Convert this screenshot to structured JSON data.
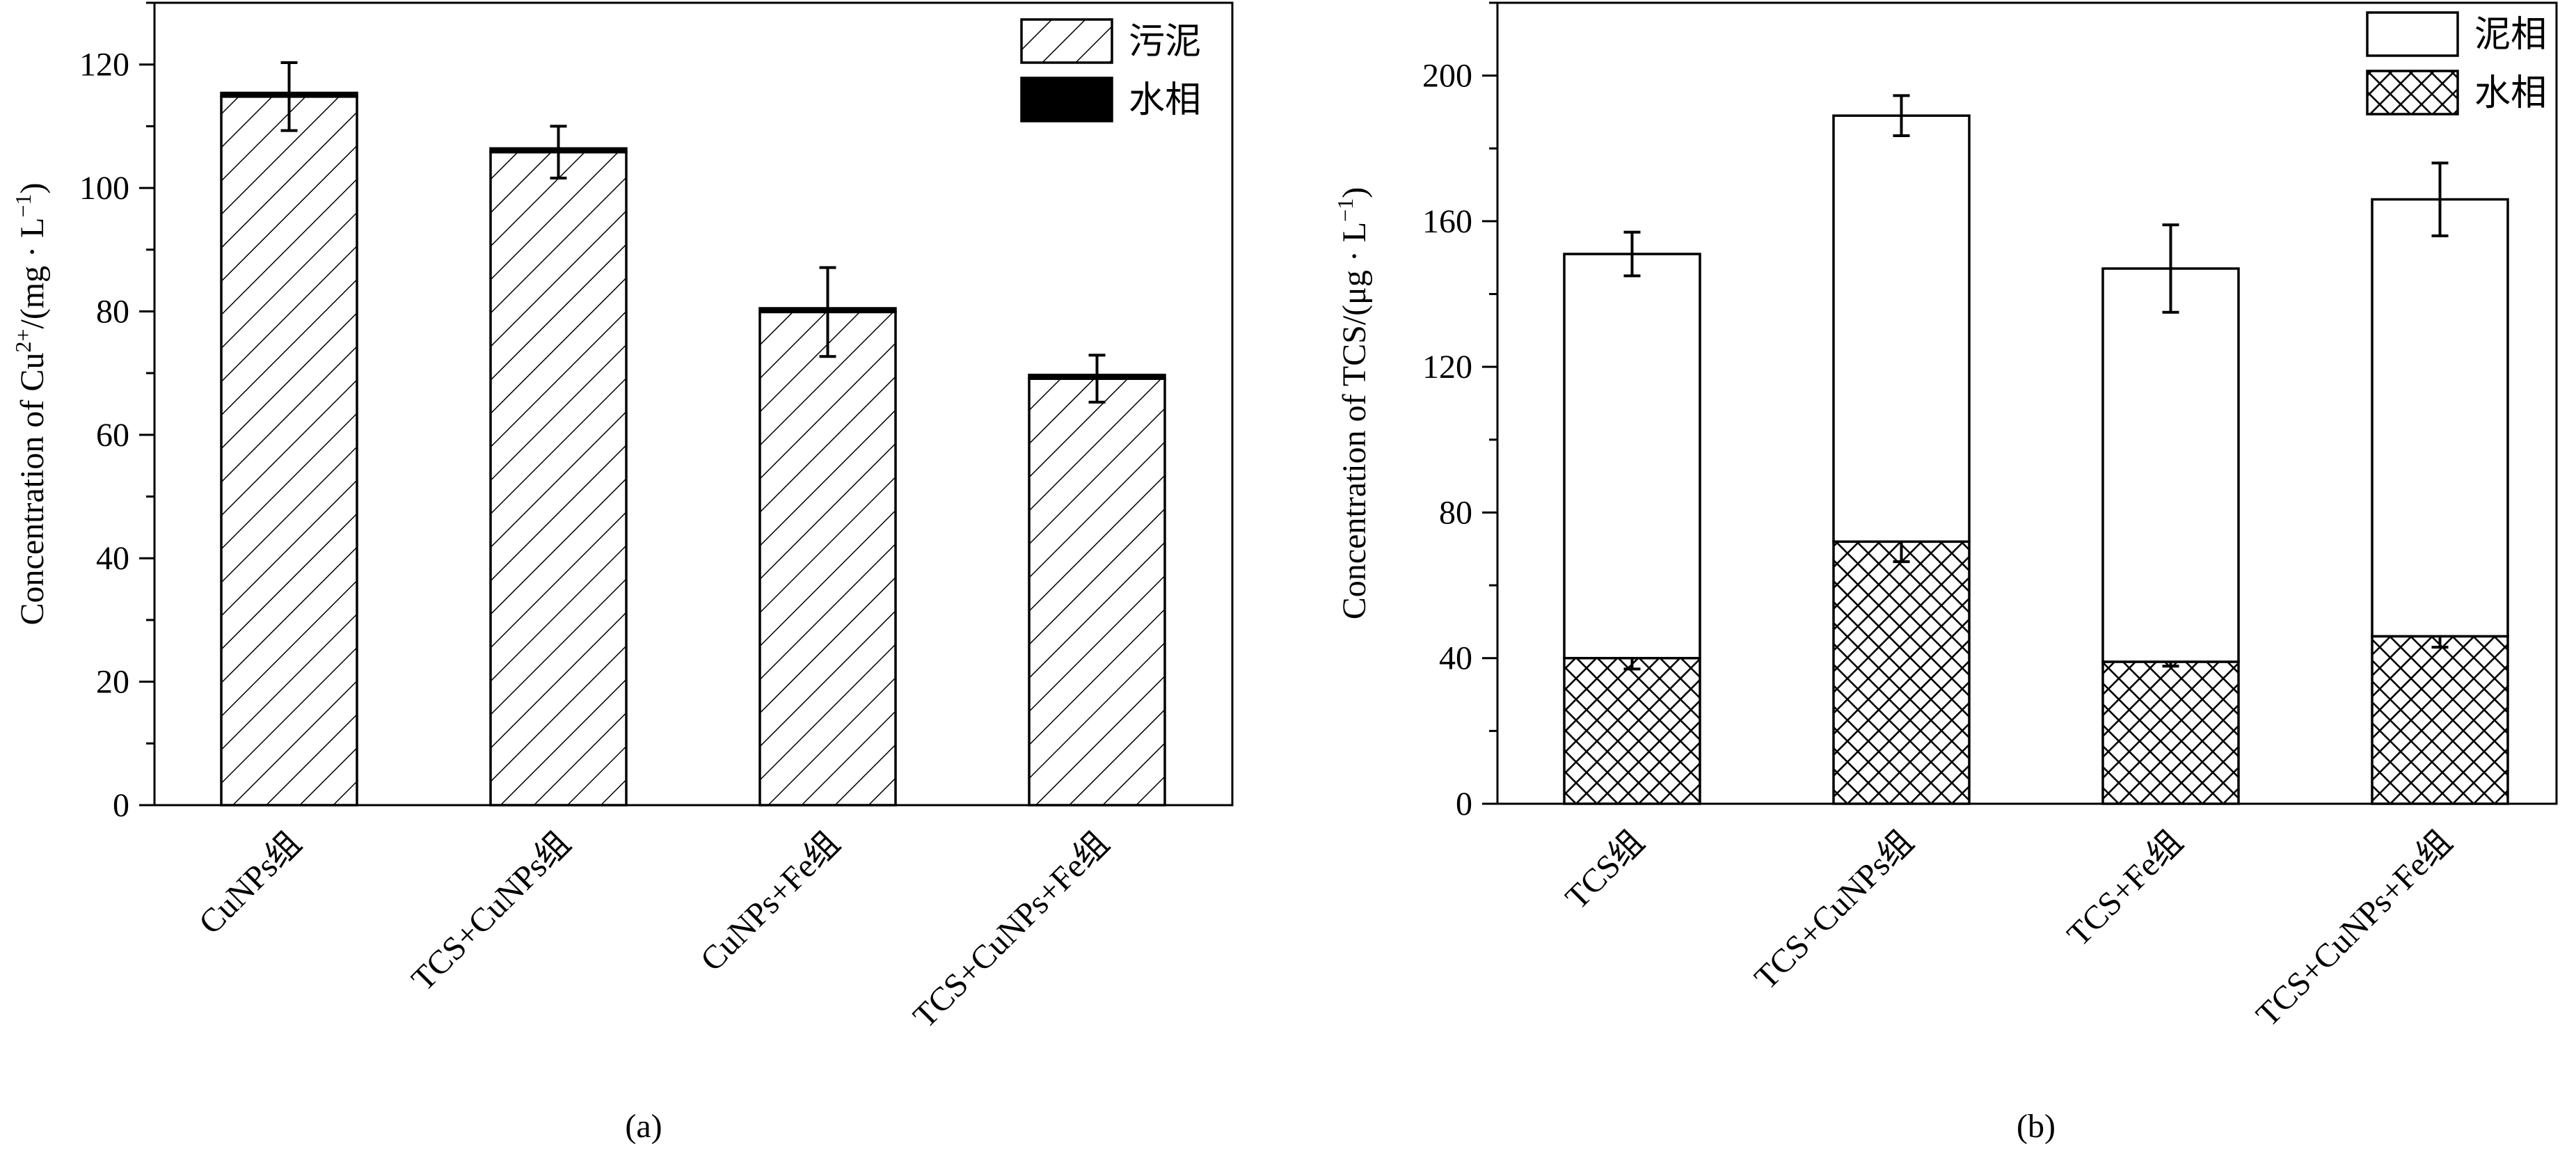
{
  "chart_data": [
    {
      "type": "bar",
      "panel_label": "(a)",
      "title": "",
      "xlabel": "",
      "ylabel": "Concentration of Cu2+/(mg · L−1)",
      "ylabel_parts": {
        "pre": "Concentration of Cu",
        "sup1": "2+",
        "mid": "/(mg · L",
        "sup2": "−1",
        "post": ")"
      },
      "ylim": [
        0,
        130
      ],
      "yticks": [
        0,
        20,
        40,
        60,
        80,
        100,
        120
      ],
      "categories": [
        "CuNPs组",
        "TCS+CuNPs组",
        "CuNPs+Fe组",
        "TCS+CuNPs+Fe组"
      ],
      "stacked": true,
      "legend_position": "top-right",
      "series": [
        {
          "name": "污泥",
          "pattern": "hatch-diagonal",
          "values": [
            114.8,
            105.8,
            79.9,
            69.1
          ],
          "errors": [
            5.5,
            4.2,
            7.2,
            3.8
          ]
        },
        {
          "name": "水相",
          "pattern": "solid-black",
          "values": [
            0.6,
            0.6,
            0.6,
            0.6
          ],
          "errors": [
            0,
            0,
            0,
            0
          ]
        }
      ]
    },
    {
      "type": "bar",
      "panel_label": "(b)",
      "title": "",
      "xlabel": "",
      "ylabel": "Concentration of TCS/(μg · L−1)",
      "ylabel_parts": {
        "pre": "Concentration of TCS",
        "sup1": "",
        "mid": "/(μg · L",
        "sup2": "−1",
        "post": ")"
      },
      "ylim": [
        0,
        220
      ],
      "yticks": [
        0,
        40,
        80,
        120,
        160,
        200
      ],
      "categories": [
        "TCS组",
        "TCS+CuNPs组",
        "TCS+Fe组",
        "TCS+CuNPs+Fe组"
      ],
      "stacked": true,
      "legend_position": "top-right",
      "series": [
        {
          "name": "水相",
          "pattern": "crosshatch",
          "values": [
            40,
            72,
            39,
            46
          ],
          "errors": [
            3,
            5.5,
            1.2,
            3
          ]
        },
        {
          "name": "泥相",
          "pattern": "empty",
          "values": [
            111,
            117,
            108,
            120
          ],
          "errors": [
            6,
            5.5,
            12,
            10
          ]
        }
      ],
      "legend_order": [
        "泥相",
        "水相"
      ]
    }
  ]
}
